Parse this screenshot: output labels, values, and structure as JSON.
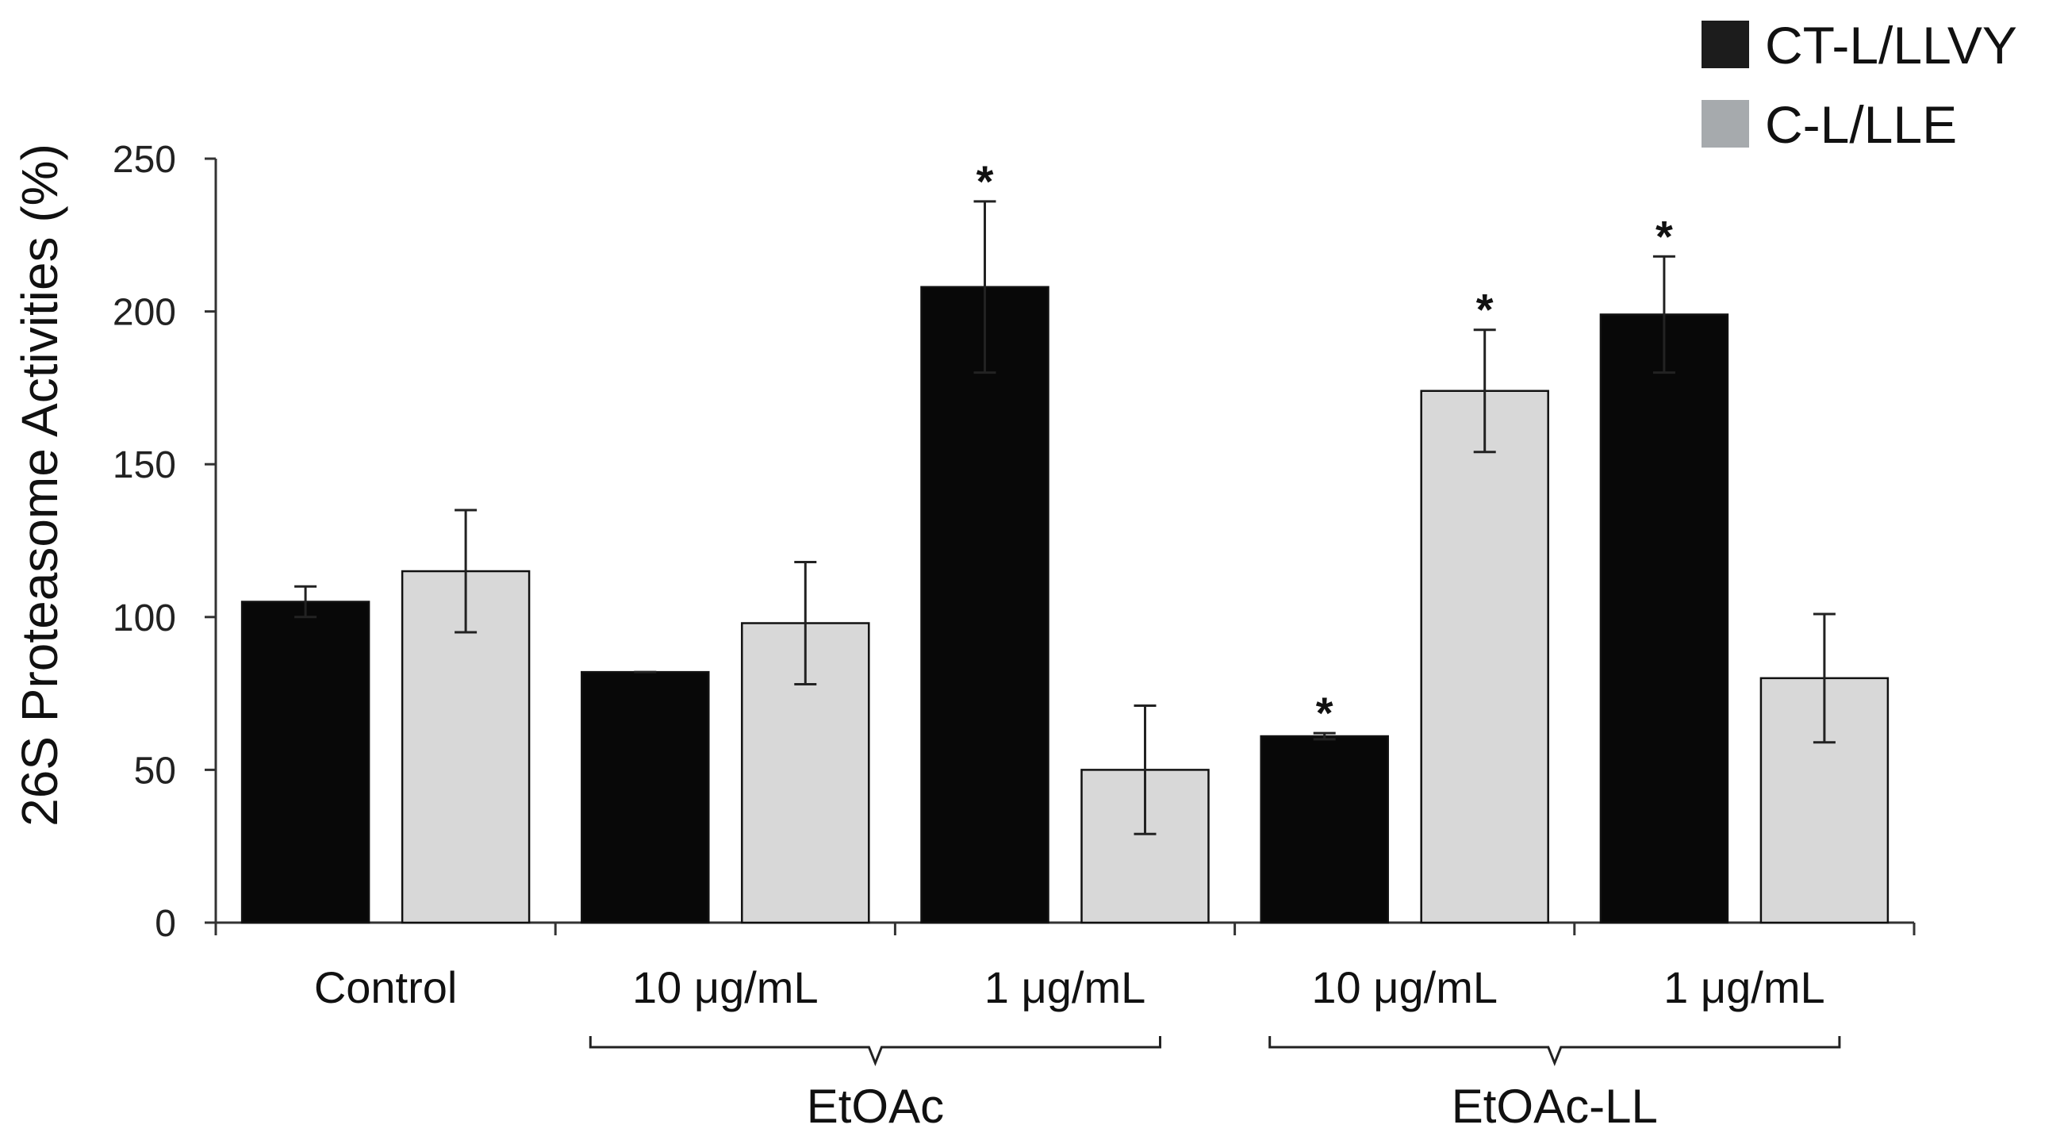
{
  "chart_data": {
    "type": "bar",
    "title": "",
    "xlabel": "",
    "ylabel": "26S Proteasome Activities  (%)",
    "ylim": [
      0,
      250
    ],
    "yticks": [
      0,
      50,
      100,
      150,
      200,
      250
    ],
    "grid": false,
    "legend_position": "top-right",
    "categories": [
      "Control",
      "10 μg/mL",
      "1 μg/mL",
      "10 μg/mL",
      "1 μg/mL"
    ],
    "groups": [
      {
        "label": "EtOAc",
        "categories": [
          1,
          2
        ]
      },
      {
        "label": "EtOAc-LL",
        "categories": [
          3,
          4
        ]
      }
    ],
    "series": [
      {
        "name": "CT-L/LLVY",
        "color": "#080808",
        "legend_color": "#1c1c1c",
        "values": [
          105,
          82,
          208,
          61,
          199
        ],
        "errors": [
          5,
          0,
          28,
          1,
          19
        ],
        "significant": [
          false,
          false,
          true,
          true,
          true
        ]
      },
      {
        "name": "C-L/LLE",
        "color": "#d8d8d8",
        "legend_color": "#a6aaad",
        "values": [
          115,
          98,
          50,
          174,
          80
        ],
        "errors": [
          20,
          20,
          21,
          20,
          21
        ],
        "significant": [
          false,
          false,
          false,
          true,
          false
        ]
      }
    ],
    "significance_marker": "*"
  }
}
